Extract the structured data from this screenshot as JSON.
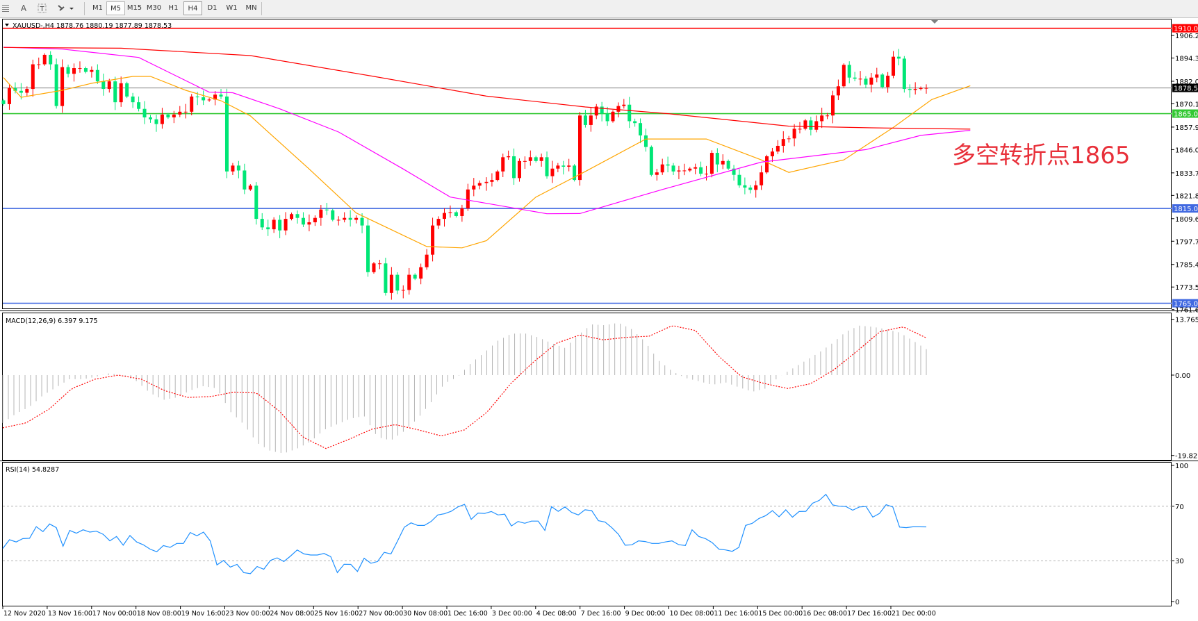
{
  "toolbar": {
    "icons": [
      "grid-menu-icon",
      "text-icon",
      "text-label-icon",
      "arrows-dropdown-icon"
    ],
    "text_tool": "A",
    "timeframes": [
      "M1",
      "M5",
      "M15",
      "M30",
      "H1",
      "H4",
      "D1",
      "W1",
      "MN"
    ],
    "selected_timeframe": "H4",
    "highlighted_timeframe": "M5"
  },
  "chart": {
    "header": "XAUUSD-,H4  1878.76 1880.19 1877.89 1878.53",
    "annotation": "多空转折点1865",
    "colors": {
      "up_candle": "#ff0000",
      "down_candle": "#00e676",
      "ma_fast": "#ffa500",
      "ma_mid": "#ff00ff",
      "ma_slow": "#ff0000",
      "current_price": "#808080"
    }
  },
  "chart_data": [
    {
      "type": "candlestick",
      "symbol": "XAUUSD-",
      "timeframe": "H4",
      "ylim": [
        1761.65,
        1910
      ],
      "price_ticks": [
        "1906.20",
        "1894.30",
        "1882.05",
        "1870.15",
        "1857.90",
        "1846.00",
        "1833.75",
        "1821.85",
        "1809.60",
        "1797.70",
        "1785.45",
        "1773.55",
        "1761.65"
      ],
      "x_ticks": [
        "12 Nov 2020",
        "13 Nov 16:00",
        "17 Nov 00:00",
        "18 Nov 08:00",
        "19 Nov 16:00",
        "23 Nov 00:00",
        "24 Nov 08:00",
        "25 Nov 16:00",
        "27 Nov 00:00",
        "30 Nov 08:00",
        "1 Dec 16:00",
        "3 Dec 00:00",
        "4 Dec 08:00",
        "7 Dec 16:00",
        "9 Dec 00:00",
        "10 Dec 08:00",
        "11 Dec 16:00",
        "15 Dec 00:00",
        "16 Dec 08:00",
        "17 Dec 16:00",
        "21 Dec 00:00"
      ],
      "horizontal_levels": [
        {
          "price": 1910.0,
          "label": "1910.00",
          "color": "#ff0000"
        },
        {
          "price": 1865.0,
          "label": "1865.00",
          "color": "#32c832"
        },
        {
          "price": 1815.0,
          "label": "1815.00",
          "color": "#4169e1"
        },
        {
          "price": 1765.0,
          "label": "1765.00",
          "color": "#4169e1"
        }
      ],
      "current_price": {
        "price": 1878.53,
        "label": "1878.53"
      },
      "closes": [
        1870,
        1878.5,
        1877,
        1876,
        1878,
        1891,
        1891,
        1896,
        1891,
        1869,
        1889.5,
        1886,
        1889,
        1889,
        1887,
        1888,
        1882,
        1878,
        1882,
        1871,
        1881,
        1874,
        1871,
        1867.5,
        1863,
        1862,
        1859.5,
        1864.5,
        1863,
        1864.5,
        1866,
        1866,
        1874,
        1873.6,
        1872,
        1872.4,
        1875,
        1874,
        1834.5,
        1837.6,
        1835,
        1825,
        1827,
        1809.5,
        1805,
        1804,
        1809,
        1803.4,
        1809.5,
        1812,
        1810,
        1806.5,
        1807.7,
        1810,
        1814.4,
        1814,
        1809,
        1809,
        1810,
        1809,
        1810,
        1806,
        1781.4,
        1786,
        1786,
        1770.4,
        1780,
        1771.7,
        1772,
        1780,
        1778,
        1784,
        1790.6,
        1806,
        1809.5,
        1812.6,
        1813,
        1811,
        1815,
        1825,
        1827,
        1828.4,
        1829,
        1830,
        1834.5,
        1842,
        1842.5,
        1831,
        1840,
        1840,
        1842,
        1840,
        1842,
        1832,
        1836,
        1837.6,
        1837,
        1837.6,
        1830,
        1864,
        1859,
        1864,
        1868.7,
        1865,
        1861,
        1866,
        1869,
        1869.7,
        1861,
        1860,
        1853.5,
        1847.4,
        1832.7,
        1834,
        1838.2,
        1837.6,
        1834.5,
        1835,
        1835,
        1836,
        1836.7,
        1833.3,
        1833.3,
        1844.3,
        1838.2,
        1840,
        1836,
        1832.7,
        1827.2,
        1826,
        1824.8,
        1827.2,
        1834,
        1842.5,
        1845,
        1848,
        1851.6,
        1851.9,
        1857,
        1857,
        1861.4,
        1856.5,
        1861,
        1864,
        1864,
        1874.6,
        1879.4,
        1890.7,
        1884,
        1883.4,
        1883.4,
        1880.3,
        1884,
        1885.6,
        1879,
        1885,
        1895,
        1894,
        1878,
        1877.5,
        1878,
        1878.5,
        1878.53
      ],
      "moving_averages": [
        {
          "color": "#ffa500",
          "points": [
            [
              0,
              1884
            ],
            [
              3,
              1873.6
            ],
            [
              10,
              1877.3
            ],
            [
              15,
              1881
            ],
            [
              22,
              1884.6
            ],
            [
              25,
              1884.6
            ],
            [
              31,
              1877.3
            ],
            [
              37,
              1871.8
            ],
            [
              42,
              1863.8
            ],
            [
              52,
              1835.8
            ],
            [
              60,
              1812.6
            ],
            [
              72,
              1794.9
            ],
            [
              78,
              1794.2
            ],
            [
              82,
              1798
            ],
            [
              91,
              1821
            ],
            [
              100,
              1834.5
            ],
            [
              111,
              1851.6
            ],
            [
              122,
              1851.6
            ],
            [
              132,
              1840.6
            ],
            [
              137,
              1834
            ],
            [
              147,
              1840.6
            ],
            [
              156,
              1857.7
            ],
            [
              163,
              1872.4
            ],
            [
              170,
              1879.7
            ]
          ]
        },
        {
          "color": "#ff00ff",
          "points": [
            [
              0,
              1900
            ],
            [
              10,
              1899
            ],
            [
              23,
              1894.6
            ],
            [
              35,
              1876.3
            ],
            [
              39,
              1876
            ],
            [
              47,
              1867.5
            ],
            [
              57,
              1855.3
            ],
            [
              68,
              1835.8
            ],
            [
              76,
              1821
            ],
            [
              93,
              1812.2
            ],
            [
              99,
              1812.3
            ],
            [
              114,
              1825
            ],
            [
              132,
              1839.4
            ],
            [
              151,
              1846
            ],
            [
              161,
              1853.5
            ],
            [
              170,
              1856.2
            ]
          ]
        },
        {
          "color": "#ff0000",
          "points": [
            [
              0,
              1899.9
            ],
            [
              20,
              1899.5
            ],
            [
              42,
              1895.6
            ],
            [
              63,
              1884.6
            ],
            [
              82,
              1874.2
            ],
            [
              100,
              1868.5
            ],
            [
              115,
              1865
            ],
            [
              137,
              1858.4
            ],
            [
              152,
              1857.5
            ],
            [
              170,
              1856.8
            ]
          ]
        }
      ]
    },
    {
      "type": "bar",
      "title": "MACD(12,26,9) 6.397 9.175",
      "ylim": [
        -19.82,
        13.765
      ],
      "y_ticks": [
        "13.765",
        "0.00",
        "-19.82"
      ],
      "histogram": [
        -11.8,
        -9.5,
        -7.8,
        -5,
        -3,
        -1,
        -1,
        -0.4,
        0.5,
        -0.1,
        -1.5,
        -4.4,
        -6.1,
        -5.5,
        -3.8,
        -2.7,
        -3.3,
        -9,
        -12.1,
        -16.7,
        -18.7,
        -19.3,
        -18.1,
        -16.4,
        -13.5,
        -12.1,
        -10.7,
        -10.1,
        -15.3,
        -16.1,
        -13.8,
        -10.7,
        -6.7,
        -2.1,
        -0.4,
        3,
        5.6,
        8.5,
        10.2,
        10.3,
        9.3,
        7.9,
        6.7,
        9.9,
        12.5,
        12.3,
        12.9,
        11.3,
        8.2,
        3.6,
        1,
        -0.7,
        -1.5,
        -2.4,
        -1.8,
        -3,
        -4.1,
        -3.3,
        -0.4,
        1.6,
        3.6,
        5.6,
        7.9,
        10.7,
        12.2,
        11.9,
        11.3,
        10.5,
        8.5,
        6.397
      ],
      "signal": [
        -13,
        -11.8,
        -8.4,
        -3.3,
        -1,
        0,
        -1,
        -3.8,
        -5.5,
        -5.3,
        -4.2,
        -4.4,
        -9,
        -15.3,
        -18.1,
        -15.8,
        -13.3,
        -12.2,
        -13.5,
        -15,
        -13.5,
        -9,
        -2.1,
        3.3,
        7.9,
        9.9,
        8.7,
        9.3,
        9.6,
        12.2,
        11,
        4.7,
        -0.4,
        -2.1,
        -3.3,
        -2.1,
        1.3,
        5.9,
        10.7,
        11.9,
        9.175
      ]
    },
    {
      "type": "line",
      "title": "RSI(14) 54.8287",
      "ylim": [
        0,
        100
      ],
      "y_ticks": [
        "100",
        "70",
        "30",
        "0"
      ],
      "levels": [
        70,
        30
      ],
      "values": [
        39,
        45.4,
        43.8,
        46.2,
        46.5,
        55,
        51.4,
        57,
        54.3,
        40.6,
        52.2,
        50.2,
        52.7,
        51,
        51.7,
        49.4,
        44.6,
        47.8,
        41.4,
        48.5,
        43.8,
        41.7,
        38.5,
        36.6,
        41.1,
        39.8,
        42.7,
        42.7,
        50.7,
        48.3,
        51,
        44.6,
        26.9,
        30.2,
        25.3,
        27.3,
        21.3,
        20.5,
        25.7,
        23.7,
        30.2,
        32.1,
        29.4,
        33.4,
        37.9,
        35,
        34.2,
        34.2,
        35.3,
        33,
        21.3,
        27.4,
        27.3,
        22.1,
        31.8,
        28.1,
        29.4,
        36.1,
        35,
        44.6,
        54.6,
        57.8,
        55.9,
        55.9,
        58.8,
        63.6,
        64.5,
        66.3,
        69.5,
        71.4,
        60.4,
        65,
        64.7,
        66.1,
        63.6,
        64.2,
        55.5,
        58.8,
        57.5,
        59.1,
        59.1,
        52.3,
        69.7,
        66.3,
        69.5,
        65.5,
        63.6,
        67.4,
        66.8,
        59.4,
        58.4,
        54.3,
        49.4,
        41.4,
        41.7,
        44.6,
        44.1,
        42.7,
        42.7,
        43.8,
        44.6,
        41.8,
        41.1,
        52.7,
        47.8,
        46.2,
        43.3,
        38.5,
        37.9,
        36.9,
        39.8,
        55.9,
        57.5,
        61,
        63.1,
        66.8,
        62.3,
        67.4,
        62,
        66.1,
        66.3,
        72.2,
        74.3,
        78.7,
        71,
        70,
        69.8,
        67.1,
        69.5,
        69.8,
        62,
        64.7,
        71.1,
        69.5,
        54.7,
        54.3,
        54.9,
        54.9,
        54.83
      ]
    }
  ]
}
